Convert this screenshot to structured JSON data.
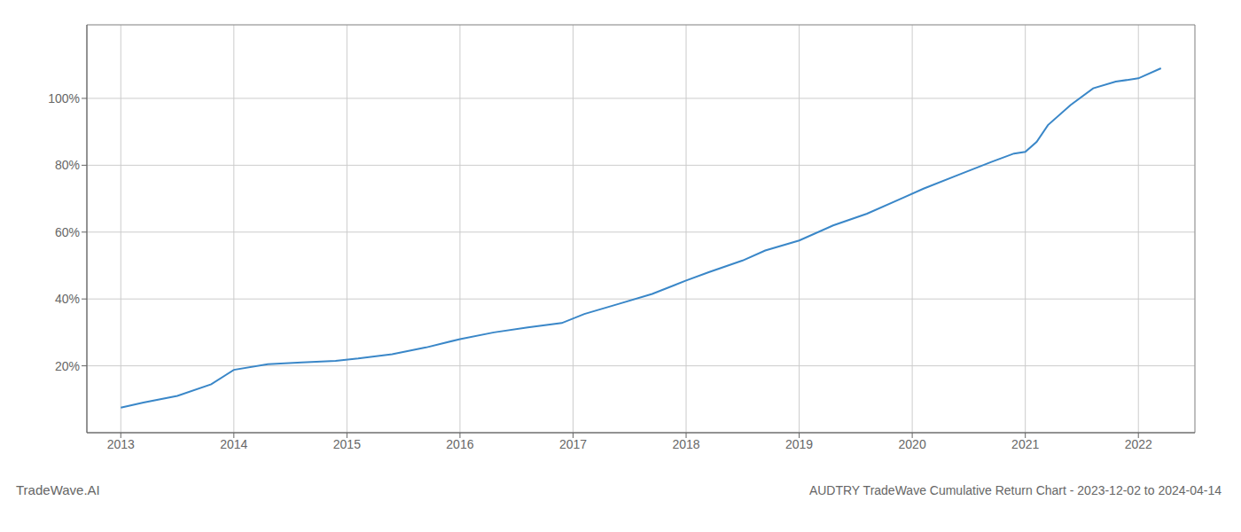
{
  "chart_data": {
    "type": "line",
    "title": "AUDTRY TradeWave Cumulative Return Chart - 2023-12-02 to 2024-04-14",
    "annotations": [
      "TradeWave.AI"
    ],
    "x": [
      2013.0,
      2013.2,
      2013.5,
      2013.8,
      2014.0,
      2014.3,
      2014.6,
      2014.9,
      2015.1,
      2015.4,
      2015.7,
      2016.0,
      2016.3,
      2016.6,
      2016.9,
      2017.1,
      2017.4,
      2017.7,
      2018.0,
      2018.2,
      2018.5,
      2018.7,
      2019.0,
      2019.3,
      2019.6,
      2019.9,
      2020.1,
      2020.4,
      2020.7,
      2020.9,
      2021.0,
      2021.1,
      2021.2,
      2021.4,
      2021.6,
      2021.8,
      2022.0,
      2022.2
    ],
    "values": [
      0.075,
      0.09,
      0.11,
      0.145,
      0.188,
      0.205,
      0.21,
      0.215,
      0.222,
      0.235,
      0.255,
      0.28,
      0.3,
      0.315,
      0.328,
      0.355,
      0.385,
      0.415,
      0.455,
      0.48,
      0.515,
      0.545,
      0.575,
      0.62,
      0.655,
      0.7,
      0.73,
      0.77,
      0.81,
      0.835,
      0.84,
      0.87,
      0.92,
      0.98,
      1.03,
      1.05,
      1.06,
      1.09
    ],
    "color": "#3a87c8",
    "xlim": [
      2012.7,
      2022.5
    ],
    "xticks": [
      2013,
      2014,
      2015,
      2016,
      2017,
      2018,
      2019,
      2020,
      2021,
      2022
    ],
    "ylim": [
      0.0,
      1.22
    ],
    "yticks": [
      {
        "value": 0.2,
        "label": "20%"
      },
      {
        "value": 0.4,
        "label": "40%"
      },
      {
        "value": 0.6,
        "label": "60%"
      },
      {
        "value": 0.8,
        "label": "80%"
      },
      {
        "value": 1.0,
        "label": "100%"
      }
    ],
    "grid": true
  }
}
